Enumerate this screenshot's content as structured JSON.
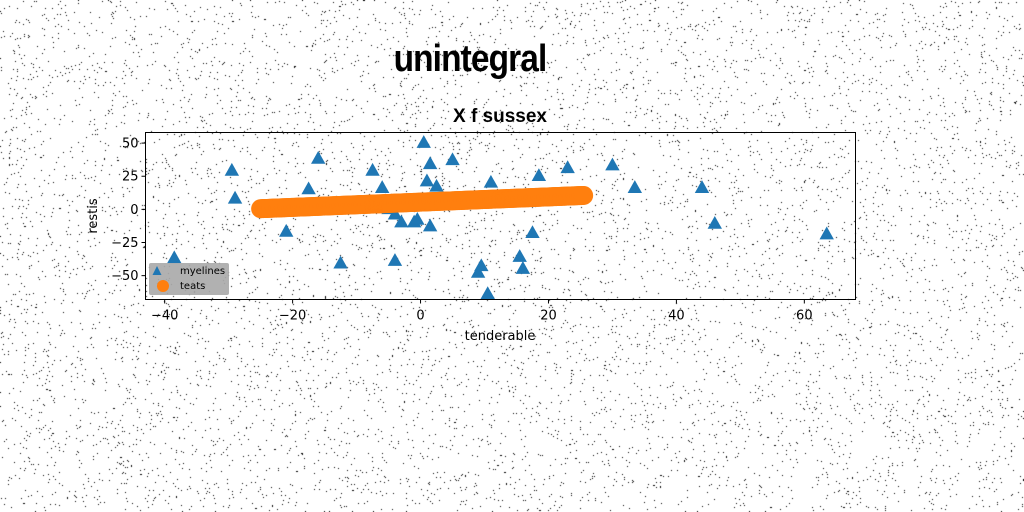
{
  "suptitle": "unintegral",
  "chart_data": {
    "type": "scatter",
    "title": "X f sussex",
    "xlabel": "tenderable",
    "ylabel": "restis",
    "xlim": [
      -43,
      68
    ],
    "ylim": [
      -68,
      58
    ],
    "xticks": [
      -40,
      -20,
      0,
      20,
      40,
      60
    ],
    "xtick_labels": [
      "−40",
      "−20",
      "0",
      "20",
      "40",
      "60"
    ],
    "yticks": [
      -50,
      -25,
      0,
      25,
      50
    ],
    "ytick_labels": [
      "−50",
      "−25",
      "0",
      "25",
      "50"
    ],
    "grid": false,
    "legend_position": "lower-left",
    "series": [
      {
        "name": "myelines",
        "marker": "triangle",
        "color": "#1f77b4",
        "points": [
          [
            -38.5,
            -37
          ],
          [
            -29.5,
            29
          ],
          [
            -29,
            8
          ],
          [
            -21,
            -17
          ],
          [
            -17.5,
            15
          ],
          [
            -16,
            38
          ],
          [
            -12.5,
            -41
          ],
          [
            -7.5,
            29
          ],
          [
            -6,
            16
          ],
          [
            -5,
            0
          ],
          [
            -4,
            -4
          ],
          [
            -4,
            -39
          ],
          [
            -3,
            -10
          ],
          [
            -1,
            -10
          ],
          [
            -0.5,
            -8
          ],
          [
            0.5,
            50
          ],
          [
            1,
            21
          ],
          [
            1.5,
            34
          ],
          [
            1.5,
            -13
          ],
          [
            2.5,
            17
          ],
          [
            5,
            37
          ],
          [
            9,
            -48
          ],
          [
            9.5,
            -43
          ],
          [
            10.5,
            -64
          ],
          [
            11,
            20
          ],
          [
            15.5,
            -36
          ],
          [
            16,
            -45
          ],
          [
            17.5,
            -18
          ],
          [
            18.5,
            25
          ],
          [
            23,
            31
          ],
          [
            30,
            33
          ],
          [
            33.5,
            16
          ],
          [
            44,
            16
          ],
          [
            46,
            -11
          ],
          [
            63.5,
            -19
          ]
        ]
      },
      {
        "name": "teats",
        "marker": "circle",
        "color": "#ff7f0e",
        "line": {
          "x": [
            -25,
            25.5
          ],
          "y": [
            0.5,
            10.5
          ]
        },
        "count": 250
      }
    ]
  }
}
